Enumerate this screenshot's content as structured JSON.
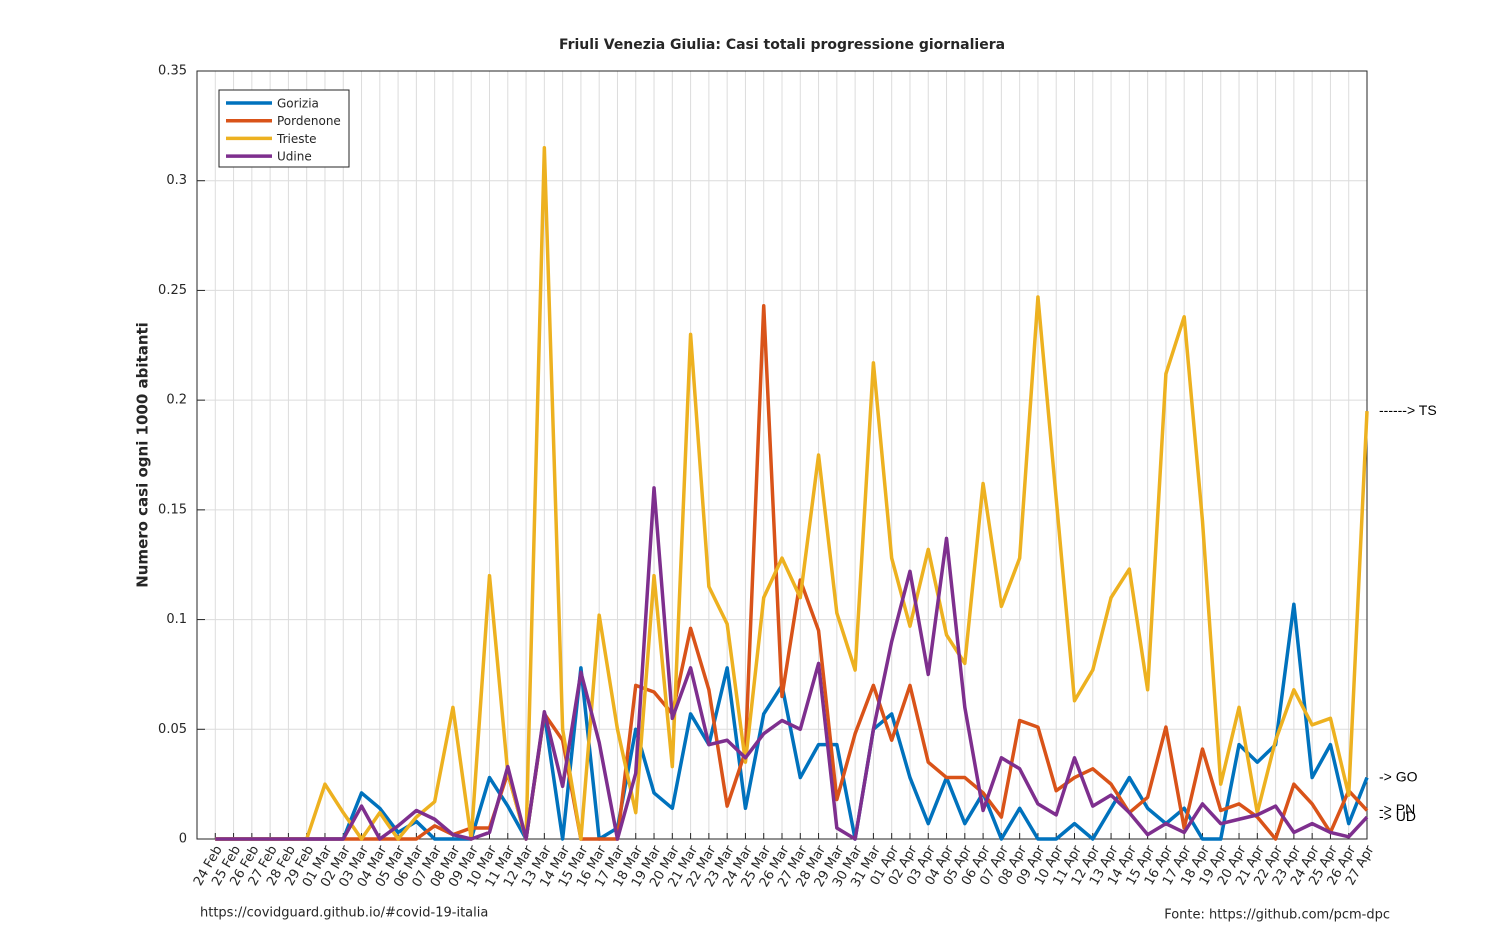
{
  "chart_data": {
    "type": "line",
    "title": "Friuli Venezia Giulia: Casi totali progressione giornaliera",
    "ylabel": "Numero casi ogni 1000 abitanti",
    "categories": [
      "24 Feb",
      "25 Feb",
      "26 Feb",
      "27 Feb",
      "28 Feb",
      "29 Feb",
      "01 Mar",
      "02 Mar",
      "03 Mar",
      "04 Mar",
      "05 Mar",
      "06 Mar",
      "07 Mar",
      "08 Mar",
      "09 Mar",
      "10 Mar",
      "11 Mar",
      "12 Mar",
      "13 Mar",
      "14 Mar",
      "15 Mar",
      "16 Mar",
      "17 Mar",
      "18 Mar",
      "19 Mar",
      "20 Mar",
      "21 Mar",
      "22 Mar",
      "23 Mar",
      "24 Mar",
      "25 Mar",
      "26 Mar",
      "27 Mar",
      "28 Mar",
      "29 Mar",
      "30 Mar",
      "31 Mar",
      "01 Apr",
      "02 Apr",
      "03 Apr",
      "04 Apr",
      "05 Apr",
      "06 Apr",
      "07 Apr",
      "08 Apr",
      "09 Apr",
      "10 Apr",
      "11 Apr",
      "12 Apr",
      "13 Apr",
      "14 Apr",
      "15 Apr",
      "16 Apr",
      "17 Apr",
      "18 Apr",
      "19 Apr",
      "20 Apr",
      "21 Apr",
      "22 Apr",
      "23 Apr",
      "24 Apr",
      "25 Apr",
      "26 Apr",
      "27 Apr"
    ],
    "series": [
      {
        "name": "Gorizia",
        "color": "#0072bd",
        "values": [
          0,
          0,
          0,
          0,
          0,
          0,
          0,
          0,
          0.021,
          0.014,
          0.003,
          0.008,
          0,
          0,
          0,
          0.028,
          0.015,
          0,
          0.057,
          0,
          0.078,
          0,
          0.005,
          0.05,
          0.021,
          0.014,
          0.057,
          0.043,
          0.078,
          0.014,
          0.057,
          0.07,
          0.028,
          0.043,
          0.043,
          0,
          0.05,
          0.057,
          0.028,
          0.007,
          0.028,
          0.007,
          0.021,
          0,
          0.014,
          0,
          0,
          0.007,
          0,
          0.014,
          0.028,
          0.014,
          0.007,
          0.014,
          0,
          0,
          0.043,
          0.035,
          0.043,
          0.107,
          0.028,
          0.043,
          0.007,
          0.028
        ]
      },
      {
        "name": "Pordenone",
        "color": "#d95319",
        "values": [
          0,
          0,
          0,
          0,
          0,
          0,
          0,
          0,
          0,
          0,
          0,
          0,
          0.006,
          0.002,
          0.005,
          0.005,
          0.03,
          0,
          0.057,
          0.045,
          0,
          0,
          0,
          0.07,
          0.067,
          0.057,
          0.096,
          0.068,
          0.015,
          0.04,
          0.243,
          0.065,
          0.118,
          0.095,
          0.018,
          0.048,
          0.07,
          0.045,
          0.07,
          0.035,
          0.028,
          0.028,
          0.021,
          0.01,
          0.054,
          0.051,
          0.022,
          0.028,
          0.032,
          0.025,
          0.012,
          0.019,
          0.051,
          0.005,
          0.041,
          0.013,
          0.016,
          0.01,
          0,
          0.025,
          0.016,
          0.003,
          0.022,
          0.013
        ]
      },
      {
        "name": "Trieste",
        "color": "#edb120",
        "values": [
          0,
          0,
          0,
          0,
          0,
          0,
          0.025,
          0.012,
          0,
          0.012,
          0,
          0.01,
          0.017,
          0.06,
          0,
          0.12,
          0.03,
          0,
          0.315,
          0.05,
          0,
          0.102,
          0.05,
          0.012,
          0.12,
          0.033,
          0.23,
          0.115,
          0.098,
          0.035,
          0.11,
          0.128,
          0.11,
          0.175,
          0.103,
          0.077,
          0.217,
          0.128,
          0.097,
          0.132,
          0.093,
          0.08,
          0.162,
          0.106,
          0.128,
          0.247,
          0.155,
          0.063,
          0.077,
          0.11,
          0.123,
          0.068,
          0.212,
          0.238,
          0.145,
          0.025,
          0.06,
          0.012,
          0.045,
          0.068,
          0.052,
          0.055,
          0.02,
          0.195
        ]
      },
      {
        "name": "Udine",
        "color": "#7e2f8e",
        "values": [
          0,
          0,
          0,
          0,
          0,
          0,
          0,
          0,
          0.015,
          0,
          0.006,
          0.013,
          0.009,
          0.002,
          0,
          0.003,
          0.033,
          0,
          0.058,
          0.024,
          0.076,
          0.044,
          0,
          0.03,
          0.16,
          0.055,
          0.078,
          0.043,
          0.045,
          0.037,
          0.048,
          0.054,
          0.05,
          0.08,
          0.005,
          0,
          0.05,
          0.09,
          0.122,
          0.075,
          0.137,
          0.06,
          0.013,
          0.037,
          0.032,
          0.016,
          0.011,
          0.037,
          0.015,
          0.02,
          0.012,
          0.002,
          0.007,
          0.003,
          0.016,
          0.007,
          0.009,
          0.011,
          0.015,
          0.003,
          0.007,
          0.003,
          0.001,
          0.01
        ]
      }
    ],
    "annotations": [
      "-> GO",
      "-> PN",
      "------> TS",
      "-> UD"
    ],
    "ylim": [
      0,
      0.35
    ],
    "yticks": [
      0,
      0.05,
      0.1,
      0.15,
      0.2,
      0.25,
      0.3,
      0.35
    ],
    "grid": true,
    "legend": "upper-left",
    "footer_left": "https://covidguard.github.io/#covid-19-italia",
    "footer_right": "Fonte: https://github.com/pcm-dpc"
  }
}
